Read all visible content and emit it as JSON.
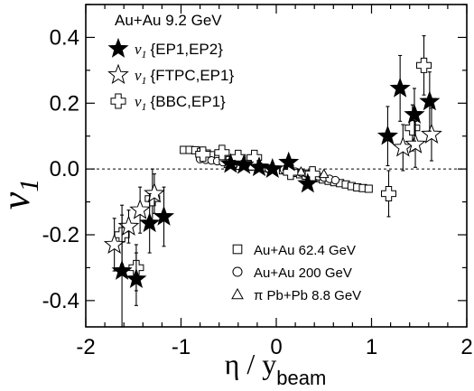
{
  "chart_data": {
    "type": "scatter",
    "xlabel": "η / y",
    "xlabel_sub": "beam",
    "ylabel": "v",
    "ylabel_sub": "1",
    "xlim": [
      -2,
      2
    ],
    "ylim": [
      -0.48,
      0.5
    ],
    "xticks": [
      -2,
      -1,
      0,
      1,
      2
    ],
    "yticks": [
      -0.4,
      -0.2,
      0.0,
      0.2,
      0.4
    ],
    "ytick_labels": [
      "-0.4",
      "-0.2",
      "0.0",
      "0.2",
      "0.4"
    ],
    "minor_x_step": 0.2,
    "minor_y_step": 0.1,
    "reference_line": 0.0,
    "legend_title": "Au+Au 9.2 GeV",
    "series": [
      {
        "name": "{EP1,EP2}",
        "symbol": "filled-star",
        "points": [
          {
            "x": -1.62,
            "y": -0.31,
            "err": 0.17
          },
          {
            "x": -1.47,
            "y": -0.335,
            "err": 0.08
          },
          {
            "x": -1.33,
            "y": -0.165,
            "err": 0.09
          },
          {
            "x": -1.18,
            "y": -0.145,
            "err": 0.09
          },
          {
            "x": -0.48,
            "y": 0.015,
            "err": 0.01
          },
          {
            "x": -0.34,
            "y": 0.012,
            "err": 0.008
          },
          {
            "x": -0.18,
            "y": 0.005,
            "err": 0.01
          },
          {
            "x": -0.04,
            "y": 0.0,
            "err": 0.008
          },
          {
            "x": 0.13,
            "y": 0.02,
            "err": 0.012
          },
          {
            "x": 0.33,
            "y": -0.045,
            "err": 0.012
          },
          {
            "x": 1.17,
            "y": 0.1,
            "err": 0.09
          },
          {
            "x": 1.3,
            "y": 0.245,
            "err": 0.1
          },
          {
            "x": 1.45,
            "y": 0.165,
            "err": 0.08
          },
          {
            "x": 1.61,
            "y": 0.205,
            "err": 0.09
          }
        ]
      },
      {
        "name": "{FTPC,EP1}",
        "symbol": "open-star",
        "points": [
          {
            "x": -1.7,
            "y": -0.23,
            "err": 0.08
          },
          {
            "x": -1.55,
            "y": -0.175,
            "err": 0.05
          },
          {
            "x": -1.43,
            "y": -0.125,
            "err": 0.07
          },
          {
            "x": -1.28,
            "y": -0.075,
            "err": 0.06
          },
          {
            "x": 1.33,
            "y": 0.065,
            "err": 0.07
          },
          {
            "x": 1.46,
            "y": 0.075,
            "err": 0.07
          },
          {
            "x": 1.63,
            "y": 0.105,
            "err": 0.08
          }
        ]
      },
      {
        "name": "{BBC,EP1}",
        "symbol": "open-cross",
        "points": [
          {
            "x": -1.62,
            "y": -0.2,
            "err": 0.09
          },
          {
            "x": -1.47,
            "y": -0.3,
            "err": 0.07
          },
          {
            "x": -1.3,
            "y": -0.09,
            "err": 0.09
          },
          {
            "x": -0.77,
            "y": 0.045,
            "err": 0.015
          },
          {
            "x": -0.57,
            "y": 0.05,
            "err": 0.015
          },
          {
            "x": -0.4,
            "y": 0.035,
            "err": 0.015
          },
          {
            "x": -0.23,
            "y": 0.035,
            "err": 0.015
          },
          {
            "x": 0.15,
            "y": -0.01,
            "err": 0.015
          },
          {
            "x": 0.38,
            "y": -0.015,
            "err": 0.015
          },
          {
            "x": 1.18,
            "y": -0.075,
            "err": 0.07
          },
          {
            "x": 1.43,
            "y": 0.125,
            "err": 0.07
          },
          {
            "x": 1.55,
            "y": 0.315,
            "err": 0.09
          }
        ]
      },
      {
        "name": "Au+Au 62.4 GeV",
        "symbol": "open-square",
        "points": [
          {
            "x": -0.97,
            "y": 0.058
          },
          {
            "x": -0.91,
            "y": 0.058
          },
          {
            "x": -0.85,
            "y": 0.057
          },
          {
            "x": -0.79,
            "y": 0.052
          },
          {
            "x": -0.73,
            "y": 0.047
          },
          {
            "x": -0.67,
            "y": 0.042
          },
          {
            "x": -0.61,
            "y": 0.037
          },
          {
            "x": -0.55,
            "y": 0.032
          },
          {
            "x": -0.49,
            "y": 0.027
          },
          {
            "x": -0.43,
            "y": 0.022
          },
          {
            "x": -0.37,
            "y": 0.018
          },
          {
            "x": -0.31,
            "y": 0.014
          },
          {
            "x": -0.25,
            "y": 0.01
          },
          {
            "x": -0.19,
            "y": 0.007
          },
          {
            "x": -0.13,
            "y": 0.004
          },
          {
            "x": -0.07,
            "y": 0.001
          },
          {
            "x": 0.07,
            "y": -0.004
          },
          {
            "x": 0.13,
            "y": -0.008
          },
          {
            "x": 0.19,
            "y": -0.012
          },
          {
            "x": 0.25,
            "y": -0.016
          },
          {
            "x": 0.31,
            "y": -0.02
          },
          {
            "x": 0.37,
            "y": -0.024
          },
          {
            "x": 0.43,
            "y": -0.028
          },
          {
            "x": 0.49,
            "y": -0.032
          },
          {
            "x": 0.55,
            "y": -0.036
          },
          {
            "x": 0.61,
            "y": -0.04
          },
          {
            "x": 0.67,
            "y": -0.043
          },
          {
            "x": 0.73,
            "y": -0.047
          },
          {
            "x": 0.79,
            "y": -0.052
          },
          {
            "x": 0.85,
            "y": -0.056
          },
          {
            "x": 0.91,
            "y": -0.058
          },
          {
            "x": 0.97,
            "y": -0.06
          }
        ]
      },
      {
        "name": "Au+Au 200 GeV",
        "symbol": "open-circle",
        "points": [
          {
            "x": -0.8,
            "y": 0.03
          },
          {
            "x": -0.74,
            "y": 0.028
          },
          {
            "x": -0.68,
            "y": 0.026
          },
          {
            "x": -0.62,
            "y": 0.024
          },
          {
            "x": -0.56,
            "y": 0.021
          },
          {
            "x": -0.5,
            "y": 0.018
          },
          {
            "x": -0.44,
            "y": 0.015
          },
          {
            "x": -0.38,
            "y": 0.012
          },
          {
            "x": -0.32,
            "y": 0.009
          },
          {
            "x": -0.26,
            "y": 0.007
          },
          {
            "x": -0.2,
            "y": 0.005
          },
          {
            "x": -0.14,
            "y": 0.003
          },
          {
            "x": -0.08,
            "y": 0.001
          },
          {
            "x": 0.08,
            "y": -0.002
          },
          {
            "x": 0.14,
            "y": -0.005
          },
          {
            "x": 0.2,
            "y": -0.008
          },
          {
            "x": 0.26,
            "y": -0.011
          },
          {
            "x": 0.32,
            "y": -0.014
          },
          {
            "x": 0.38,
            "y": -0.018
          },
          {
            "x": 0.44,
            "y": -0.022
          },
          {
            "x": 0.5,
            "y": -0.026
          },
          {
            "x": 0.56,
            "y": -0.03
          },
          {
            "x": 0.62,
            "y": -0.034
          }
        ]
      },
      {
        "name": "π Pb+Pb 8.8 GeV",
        "symbol": "open-triangle",
        "points": [
          {
            "x": -0.5,
            "y": 0.015
          },
          {
            "x": -0.38,
            "y": 0.01
          },
          {
            "x": -0.26,
            "y": 0.008
          },
          {
            "x": 0.26,
            "y": -0.008
          },
          {
            "x": 0.38,
            "y": -0.01
          },
          {
            "x": 0.5,
            "y": -0.015
          }
        ]
      }
    ],
    "legend_top": [
      "{EP1,EP2}",
      "{FTPC,EP1}",
      "{BBC,EP1}"
    ],
    "legend_bottom": [
      "Au+Au 62.4 GeV",
      "Au+Au 200 GeV",
      "π Pb+Pb 8.8 GeV"
    ]
  }
}
